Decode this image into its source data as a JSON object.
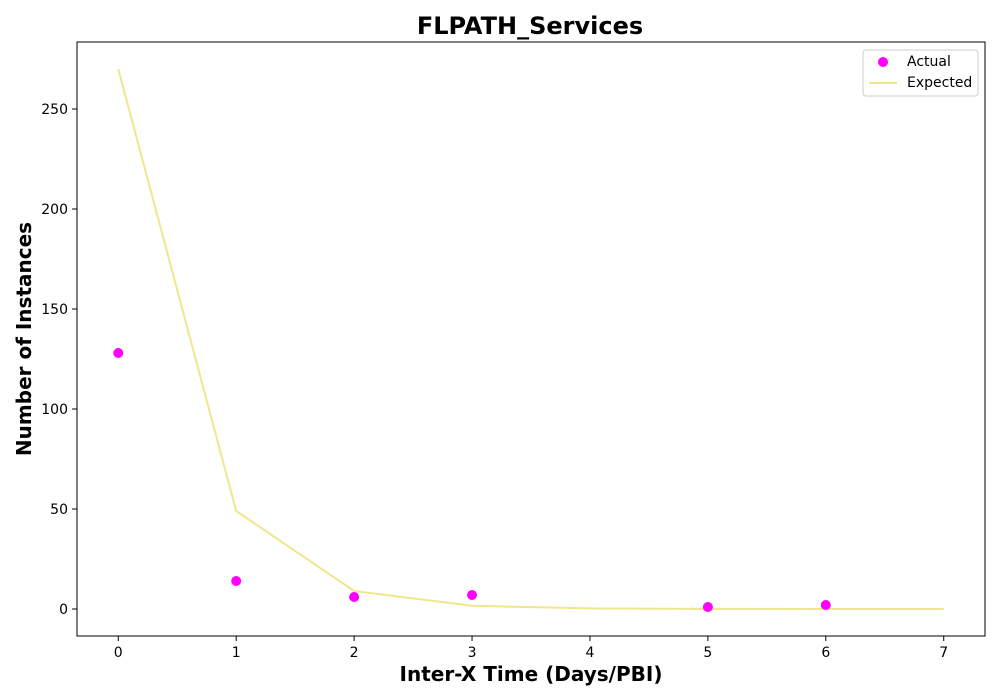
{
  "chart_data": {
    "type": "scatter",
    "title": "FLPATH_Services",
    "xlabel": "Inter-X Time (Days/PBI)",
    "ylabel": "Number of Instances",
    "xlim": [
      -0.35,
      7.35
    ],
    "ylim": [
      -13.5,
      283.5
    ],
    "xticks": [
      0,
      1,
      2,
      3,
      4,
      5,
      6,
      7
    ],
    "yticks": [
      0,
      50,
      100,
      150,
      200,
      250
    ],
    "grid": false,
    "legend_position": "top-right",
    "series": [
      {
        "name": "Actual",
        "kind": "scatter",
        "color": "#ff00ff",
        "x": [
          0,
          1,
          2,
          3,
          5,
          6
        ],
        "y": [
          128,
          14,
          6,
          7,
          1,
          2
        ]
      },
      {
        "name": "Expected",
        "kind": "line",
        "color": "#f0e68c",
        "x": [
          0,
          1,
          2,
          3,
          4,
          5,
          6,
          7
        ],
        "y": [
          270,
          49,
          9,
          1.6,
          0.3,
          0.05,
          0.01,
          0
        ]
      }
    ]
  }
}
